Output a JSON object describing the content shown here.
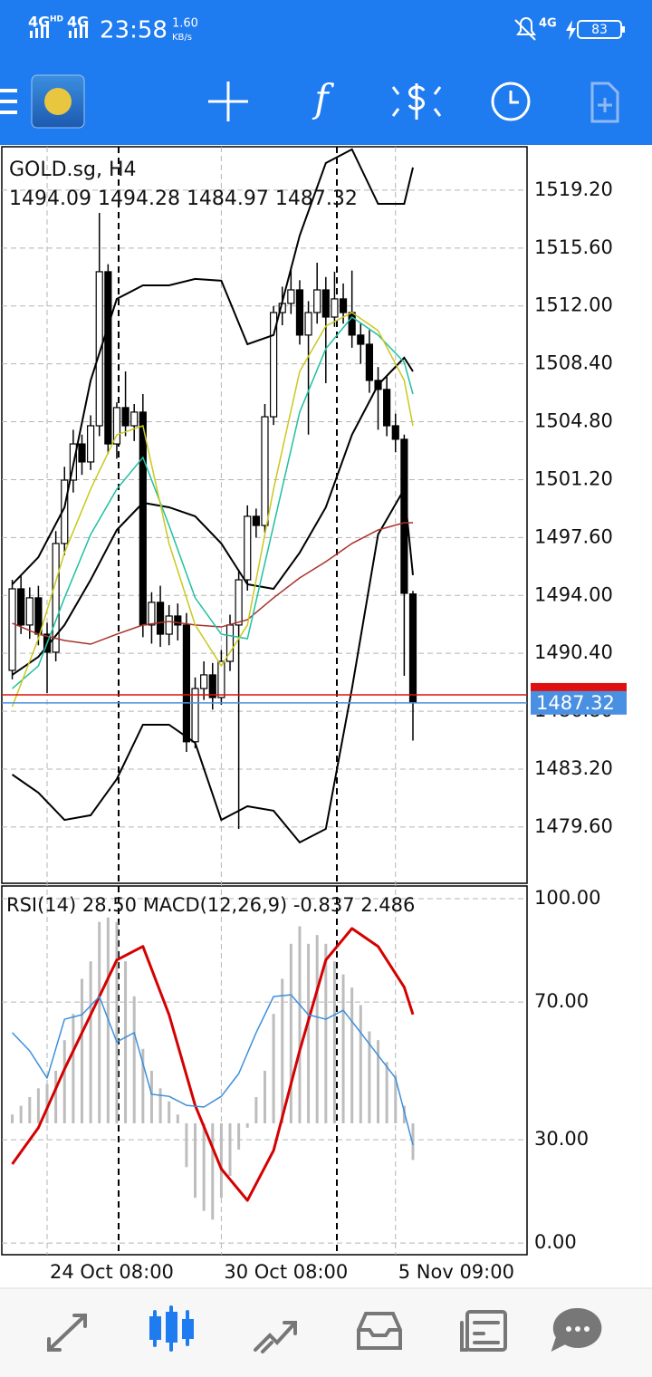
{
  "status_bar": {
    "network1": "4G",
    "network1_tag": "HD",
    "network2": "4G",
    "time": "23:58",
    "speed": "1.60",
    "speed_unit": "KB/s",
    "network3": "4G",
    "battery": 83
  },
  "toolbar": {
    "indicators": "f"
  },
  "chart_data": [
    {
      "type": "candlestick",
      "title": "GOLD.sg, H4",
      "subtitle": "1494.09 1494.28 1484.97 1487.32",
      "x": [
        0,
        1,
        2,
        3,
        4,
        5,
        6,
        7,
        8,
        9,
        10,
        11,
        12,
        13,
        14,
        15,
        16,
        17,
        18,
        19,
        20,
        21,
        22,
        23,
        24,
        25,
        26,
        27,
        28,
        29,
        30,
        31,
        32,
        33,
        34,
        35,
        36,
        37,
        38,
        39,
        40,
        41,
        42,
        43,
        44,
        45,
        46
      ],
      "open": [
        1489.34,
        1494.41,
        1492.16,
        1493.85,
        1491.59,
        1490.47,
        1497.23,
        1501.17,
        1503.42,
        1502.3,
        1504.55,
        1514.13,
        1503.42,
        1505.68,
        1504.55,
        1505.4,
        1492.16,
        1493.57,
        1491.59,
        1492.72,
        1492.16,
        1484.9,
        1488.21,
        1489.06,
        1487.65,
        1489.9,
        1492.16,
        1494.97,
        1498.92,
        1498.35,
        1505.11,
        1511.59,
        1512.16,
        1513,
        1510.19,
        1511.59,
        1513,
        1511.31,
        1512.44,
        1511.59,
        1510.19,
        1509.62,
        1507.37,
        1506.81,
        1504.55,
        1503.71,
        1494.09
      ],
      "high": [
        1494.97,
        1495.2,
        1494.5,
        1494.6,
        1492.3,
        1498,
        1502,
        1504.3,
        1504,
        1505.2,
        1517.79,
        1514.6,
        1506,
        1507.93,
        1505.9,
        1506.52,
        1494.2,
        1494.6,
        1493.4,
        1493.5,
        1492.9,
        1488.9,
        1489.9,
        1489.8,
        1490.6,
        1492.8,
        1495.6,
        1499.6,
        1499.4,
        1505.9,
        1512,
        1513.2,
        1514.41,
        1513.6,
        1512.3,
        1514.69,
        1513.8,
        1514.13,
        1513.4,
        1514.2,
        1510.9,
        1510.5,
        1508.2,
        1507.6,
        1505.3,
        1504,
        1494.28
      ],
      "low": [
        1488.78,
        1491.6,
        1491.3,
        1490.9,
        1487.93,
        1489.9,
        1496.5,
        1500.4,
        1501.5,
        1501.8,
        1503.9,
        1502.8,
        1502.5,
        1503.9,
        1503.6,
        1491.4,
        1491,
        1490.8,
        1490.9,
        1491.2,
        1484.27,
        1484.5,
        1487.5,
        1486.9,
        1487.2,
        1489.3,
        1479.48,
        1494.3,
        1497.6,
        1497.9,
        1504.6,
        1510.8,
        1511.5,
        1509.6,
        1504,
        1510.9,
        1507.2,
        1510.7,
        1510.9,
        1509.4,
        1508.4,
        1506.6,
        1504.3,
        1503.9,
        1502.9,
        1489,
        1484.97
      ],
      "close": [
        1494.41,
        1492.16,
        1493.85,
        1491.59,
        1490.47,
        1497.23,
        1501.17,
        1503.42,
        1502.3,
        1504.55,
        1514.13,
        1503.42,
        1505.68,
        1504.55,
        1505.4,
        1492.16,
        1493.57,
        1491.59,
        1492.72,
        1492.16,
        1484.9,
        1488.21,
        1489.06,
        1487.65,
        1489.9,
        1492.16,
        1494.97,
        1498.92,
        1498.35,
        1505.11,
        1511.59,
        1512.16,
        1513,
        1510.19,
        1511.59,
        1513,
        1511.31,
        1512.44,
        1511.59,
        1510.19,
        1509.62,
        1507.37,
        1506.81,
        1504.55,
        1503.71,
        1494.13,
        1487.32
      ],
      "up_color": "#ffffff",
      "down_color": "#000000",
      "overlays": [
        {
          "color": "#000000",
          "width": 2,
          "x": [
            0,
            3,
            6,
            9,
            12,
            15,
            18,
            21,
            24,
            27,
            30,
            33,
            36,
            39,
            42,
            45,
            46
          ],
          "values": [
            1494.69,
            1496.38,
            1499.48,
            1507.37,
            1512.44,
            1513.28,
            1513.28,
            1513.68,
            1513.57,
            1509.62,
            1510.19,
            1516.38,
            1520.89,
            1521.74,
            1518.35,
            1518.35,
            1520.61
          ]
        },
        {
          "color": "#000000",
          "width": 2,
          "x": [
            0,
            3,
            6,
            9,
            12,
            15,
            18,
            21,
            24,
            27,
            30,
            33,
            36,
            39,
            42,
            45,
            46
          ],
          "values": [
            1489.06,
            1490.18,
            1492.16,
            1494.97,
            1498.07,
            1499.76,
            1499.48,
            1498.92,
            1497.23,
            1494.69,
            1494.41,
            1496.66,
            1499.48,
            1503.99,
            1507.09,
            1508.78,
            1507.93
          ]
        },
        {
          "color": "#000000",
          "width": 2,
          "x": [
            0,
            3,
            6,
            9,
            12,
            15,
            18,
            21,
            24,
            27,
            30,
            33,
            36,
            39,
            42,
            45,
            46
          ],
          "values": [
            1482.86,
            1481.73,
            1480.04,
            1480.33,
            1482.58,
            1485.96,
            1485.96,
            1484.83,
            1480.04,
            1480.89,
            1480.61,
            1478.64,
            1479.48,
            1488.21,
            1497.79,
            1500.61,
            1495.26
          ]
        },
        {
          "color": "#a8322a",
          "width": 1.5,
          "x": [
            0,
            3,
            6,
            9,
            12,
            15,
            18,
            21,
            24,
            27,
            30,
            33,
            36,
            39,
            42,
            45,
            46
          ],
          "values": [
            1492.27,
            1491.59,
            1491.2,
            1490.97,
            1491.59,
            1492.16,
            1492.38,
            1492.16,
            1492.04,
            1492.49,
            1493.85,
            1495.09,
            1496.1,
            1497.23,
            1498.07,
            1498.52,
            1498.52
          ]
        },
        {
          "color": "#1fc0a0",
          "width": 1.5,
          "x": [
            0,
            3,
            6,
            9,
            12,
            15,
            18,
            21,
            24,
            27,
            30,
            33,
            36,
            39,
            42,
            45,
            46
          ],
          "values": [
            1488.21,
            1489.62,
            1493.85,
            1497.79,
            1500.61,
            1502.58,
            1498.35,
            1493.85,
            1491.59,
            1491.31,
            1498.35,
            1505.4,
            1509.34,
            1511.31,
            1510.19,
            1508.5,
            1506.52
          ]
        },
        {
          "color": "#c9c81e",
          "width": 1.5,
          "x": [
            0,
            3,
            6,
            9,
            12,
            15,
            18,
            21,
            24,
            27,
            30,
            33,
            36,
            39,
            42,
            45,
            46
          ],
          "values": [
            1487.09,
            1491.31,
            1496.66,
            1500.61,
            1503.99,
            1504.55,
            1497.23,
            1492.16,
            1489.62,
            1492.16,
            1500.61,
            1507.93,
            1510.75,
            1511.59,
            1510.47,
            1507.37,
            1504.55
          ]
        }
      ],
      "bid_line": 1487.32,
      "bid_color": "#4a90e2",
      "ask_line": 1487.82,
      "ask_color": "#e01010",
      "xlim": [
        -1.2,
        59.1
      ],
      "ylim": [
        1476.1,
        1521.9
      ],
      "yticks": [
        {
          "value": 1519.2,
          "label": "1519.20"
        },
        {
          "value": 1515.6,
          "label": "1515.60"
        },
        {
          "value": 1512,
          "label": "1512.00"
        },
        {
          "value": 1508.4,
          "label": "1508.40"
        },
        {
          "value": 1504.8,
          "label": "1504.80"
        },
        {
          "value": 1501.2,
          "label": "1501.20"
        },
        {
          "value": 1497.6,
          "label": "1497.60"
        },
        {
          "value": 1494,
          "label": "1494.00"
        },
        {
          "value": 1490.4,
          "label": "1490.40"
        },
        {
          "value": 1486.8,
          "label": "1486.80"
        },
        {
          "value": 1483.2,
          "label": "1483.20"
        },
        {
          "value": 1479.6,
          "label": "1479.60"
        }
      ],
      "grid": true
    },
    {
      "type": "oscillator",
      "title": "RSI(14) 28.50 MACD(12,26,9) -0.837 2.486",
      "series": [
        {
          "type": "bar",
          "axis": "y2",
          "color": "#bdbdbd",
          "x": [
            0,
            1,
            2,
            3,
            4,
            5,
            6,
            7,
            8,
            9,
            10,
            11,
            12,
            13,
            14,
            15,
            16,
            17,
            18,
            19,
            20,
            21,
            22,
            23,
            24,
            25,
            26,
            27,
            28,
            29,
            30,
            31,
            32,
            33,
            34,
            35,
            36,
            37,
            38,
            39,
            40,
            41,
            42,
            43,
            44,
            45,
            46
          ],
          "values": [
            0.2,
            0.4,
            0.6,
            0.8,
            0.9,
            1.2,
            1.9,
            2.5,
            3.3,
            3.7,
            4.6,
            4.7,
            4.6,
            3.7,
            2.9,
            1.7,
            1.2,
            0.8,
            0.5,
            0.2,
            -1,
            -1.7,
            -2,
            -2.2,
            -1.7,
            -1.2,
            -0.6,
            -0.1,
            0.6,
            1.2,
            2.5,
            3.3,
            4.1,
            4.5,
            4.1,
            4.3,
            4.1,
            3.7,
            3.4,
            3.1,
            2.7,
            2.1,
            1.9,
            1.4,
            1.1,
            0.4,
            -0.837
          ]
        },
        {
          "type": "line",
          "axis": "y2",
          "color": "#d50000",
          "width": 3,
          "x": [
            0,
            3,
            6,
            9,
            12,
            15,
            18,
            21,
            24,
            27,
            30,
            33,
            36,
            39,
            42,
            45,
            46
          ],
          "values": [
            -0.93,
            -0.1,
            1.24,
            2.48,
            3.73,
            4.04,
            2.48,
            0.41,
            -1.04,
            -1.76,
            -0.62,
            1.66,
            3.73,
            4.45,
            4.04,
            3.11,
            2.486
          ]
        },
        {
          "type": "line",
          "color": "#3d8fdb",
          "width": 1.5,
          "x": [
            0,
            2,
            4,
            6,
            8,
            10,
            12,
            14,
            16,
            18,
            20,
            22,
            24,
            26,
            28,
            30,
            32,
            34,
            36,
            38,
            40,
            42,
            44,
            46
          ],
          "values": [
            61.1,
            55.8,
            47.9,
            65,
            66.3,
            71.6,
            58.4,
            61.1,
            43.2,
            42.6,
            40,
            39.5,
            42.6,
            49.2,
            61.1,
            71.6,
            72.1,
            66.3,
            65,
            67.6,
            61.1,
            54.5,
            47.9,
            28.5
          ]
        }
      ],
      "xlim": [
        -1.2,
        59.1
      ],
      "ylim": [
        -3.4,
        103.7
      ],
      "y2lim": [
        -3,
        5.42
      ],
      "yticks": [
        {
          "value": 100,
          "label": "100.00"
        },
        {
          "value": 70,
          "label": "70.00"
        },
        {
          "value": 30,
          "label": "30.00"
        },
        {
          "value": 0,
          "label": "0.00"
        }
      ],
      "xticks": [
        {
          "value": 4,
          "label": "24 Oct 08:00"
        },
        {
          "value": 24,
          "label": "30 Oct 08:00"
        },
        {
          "value": 44,
          "label": "5 Nov 09:00"
        }
      ],
      "grid": true
    }
  ]
}
